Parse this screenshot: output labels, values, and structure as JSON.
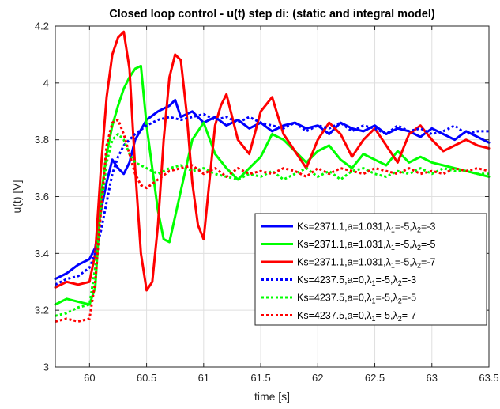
{
  "chart_data": {
    "type": "line",
    "title": "Closed loop control - u(t) step di: (static and integral model)",
    "xlabel": "time [s]",
    "ylabel": "u(t) [V]",
    "xlim": [
      59.7,
      63.5
    ],
    "ylim": [
      3.0,
      4.2
    ],
    "xticks": [
      60,
      60.5,
      61,
      61.5,
      62,
      62.5,
      63,
      63.5
    ],
    "xtick_labels": [
      "60",
      "60.5",
      "61",
      "61.5",
      "62",
      "62.5",
      "63",
      "63.5"
    ],
    "yticks": [
      3.0,
      3.2,
      3.4,
      3.6,
      3.8,
      4.0,
      4.2
    ],
    "ytick_labels": [
      "3",
      "3.2",
      "3.4",
      "3.6",
      "3.8",
      "4",
      "4.2"
    ],
    "grid": true,
    "legend_position": "lower-right",
    "series": [
      {
        "name": "Ks=2371.1,a=1.031,λ1=-5,λ2=-3",
        "legend_parts": [
          "Ks=2371.1,a=1.031,",
          "λ",
          "1",
          "=-5,",
          "λ",
          "2",
          "=-3"
        ],
        "color": "#0000ff",
        "style": "solid",
        "x": [
          59.7,
          59.8,
          59.9,
          60.0,
          60.05,
          60.1,
          60.15,
          60.2,
          60.25,
          60.3,
          60.35,
          60.4,
          60.5,
          60.6,
          60.7,
          60.75,
          60.8,
          60.9,
          61.0,
          61.1,
          61.2,
          61.3,
          61.4,
          61.5,
          61.6,
          61.7,
          61.8,
          61.9,
          62.0,
          62.1,
          62.2,
          62.3,
          62.4,
          62.5,
          62.6,
          62.7,
          62.8,
          62.9,
          63.0,
          63.1,
          63.2,
          63.3,
          63.4,
          63.5
        ],
        "y": [
          3.31,
          3.33,
          3.36,
          3.38,
          3.42,
          3.55,
          3.65,
          3.73,
          3.7,
          3.68,
          3.72,
          3.8,
          3.87,
          3.9,
          3.92,
          3.94,
          3.88,
          3.9,
          3.86,
          3.88,
          3.85,
          3.87,
          3.84,
          3.86,
          3.83,
          3.85,
          3.86,
          3.84,
          3.85,
          3.82,
          3.86,
          3.84,
          3.83,
          3.85,
          3.82,
          3.84,
          3.83,
          3.81,
          3.84,
          3.82,
          3.8,
          3.83,
          3.81,
          3.79
        ]
      },
      {
        "name": "Ks=2371.1,a=1.031,λ1=-5,λ2=-5",
        "legend_parts": [
          "Ks=2371.1,a=1.031,",
          "λ",
          "1",
          "=-5,",
          "λ",
          "2",
          "=-5"
        ],
        "color": "#00ff00",
        "style": "solid",
        "x": [
          59.7,
          59.8,
          59.9,
          60.0,
          60.05,
          60.1,
          60.15,
          60.2,
          60.25,
          60.3,
          60.35,
          60.4,
          60.45,
          60.5,
          60.55,
          60.6,
          60.65,
          60.7,
          60.8,
          60.9,
          61.0,
          61.1,
          61.2,
          61.3,
          61.4,
          61.5,
          61.6,
          61.7,
          61.8,
          61.9,
          62.0,
          62.1,
          62.2,
          62.3,
          62.4,
          62.5,
          62.6,
          62.7,
          62.8,
          62.9,
          63.0,
          63.1,
          63.2,
          63.3,
          63.4,
          63.5
        ],
        "y": [
          3.22,
          3.24,
          3.23,
          3.22,
          3.28,
          3.6,
          3.75,
          3.85,
          3.92,
          3.98,
          4.02,
          4.05,
          4.06,
          3.85,
          3.7,
          3.55,
          3.45,
          3.44,
          3.62,
          3.8,
          3.86,
          3.75,
          3.7,
          3.66,
          3.7,
          3.74,
          3.82,
          3.8,
          3.76,
          3.72,
          3.76,
          3.78,
          3.73,
          3.7,
          3.75,
          3.73,
          3.71,
          3.76,
          3.72,
          3.74,
          3.72,
          3.71,
          3.7,
          3.69,
          3.68,
          3.67
        ]
      },
      {
        "name": "Ks=2371.1,a=1.031,λ1=-5,λ2=-7",
        "legend_parts": [
          "Ks=2371.1,a=1.031,",
          "λ",
          "1",
          "=-5,",
          "λ",
          "2",
          "=-7"
        ],
        "color": "#ff0000",
        "style": "solid",
        "x": [
          59.7,
          59.8,
          59.9,
          60.0,
          60.05,
          60.1,
          60.15,
          60.2,
          60.25,
          60.3,
          60.35,
          60.4,
          60.45,
          60.5,
          60.55,
          60.6,
          60.65,
          60.7,
          60.75,
          60.8,
          60.85,
          60.9,
          60.95,
          61.0,
          61.05,
          61.1,
          61.15,
          61.2,
          61.3,
          61.4,
          61.5,
          61.6,
          61.7,
          61.8,
          61.9,
          62.0,
          62.1,
          62.2,
          62.3,
          62.4,
          62.5,
          62.6,
          62.7,
          62.8,
          62.9,
          63.0,
          63.1,
          63.2,
          63.3,
          63.4,
          63.5
        ],
        "y": [
          3.28,
          3.3,
          3.29,
          3.3,
          3.4,
          3.7,
          3.95,
          4.1,
          4.16,
          4.18,
          4.05,
          3.7,
          3.4,
          3.27,
          3.3,
          3.5,
          3.8,
          4.02,
          4.1,
          4.08,
          3.9,
          3.65,
          3.5,
          3.45,
          3.65,
          3.85,
          3.92,
          3.96,
          3.8,
          3.75,
          3.9,
          3.95,
          3.82,
          3.76,
          3.7,
          3.8,
          3.86,
          3.82,
          3.74,
          3.8,
          3.84,
          3.78,
          3.72,
          3.82,
          3.85,
          3.8,
          3.76,
          3.78,
          3.8,
          3.78,
          3.77
        ]
      },
      {
        "name": "Ks=4237.5,a=0,λ1=-5,λ2=-3",
        "legend_parts": [
          "Ks=4237.5,a=0,",
          "λ",
          "1",
          "=-5,",
          "λ",
          "2",
          "=-3"
        ],
        "color": "#0000ff",
        "style": "dotted",
        "x": [
          59.7,
          59.8,
          59.9,
          60.0,
          60.05,
          60.1,
          60.15,
          60.2,
          60.25,
          60.3,
          60.4,
          60.5,
          60.6,
          60.7,
          60.8,
          60.9,
          61.0,
          61.1,
          61.2,
          61.3,
          61.4,
          61.5,
          61.6,
          61.7,
          61.8,
          61.9,
          62.0,
          62.1,
          62.2,
          62.3,
          62.4,
          62.5,
          62.6,
          62.7,
          62.8,
          62.9,
          63.0,
          63.1,
          63.2,
          63.3,
          63.4,
          63.5
        ],
        "y": [
          3.29,
          3.31,
          3.32,
          3.35,
          3.4,
          3.48,
          3.58,
          3.68,
          3.74,
          3.78,
          3.82,
          3.85,
          3.87,
          3.88,
          3.87,
          3.88,
          3.89,
          3.87,
          3.88,
          3.86,
          3.88,
          3.86,
          3.85,
          3.84,
          3.86,
          3.83,
          3.85,
          3.84,
          3.86,
          3.83,
          3.85,
          3.84,
          3.82,
          3.85,
          3.83,
          3.84,
          3.82,
          3.83,
          3.85,
          3.82,
          3.83,
          3.83
        ]
      },
      {
        "name": "Ks=4237.5,a=0,λ1=-5,λ2=-5",
        "legend_parts": [
          "Ks=4237.5,a=0,",
          "λ",
          "1",
          "=-5,",
          "λ",
          "2",
          "=-5"
        ],
        "color": "#00ff00",
        "style": "dotted",
        "x": [
          59.7,
          59.8,
          59.9,
          60.0,
          60.05,
          60.1,
          60.15,
          60.2,
          60.25,
          60.3,
          60.35,
          60.4,
          60.5,
          60.6,
          60.7,
          60.8,
          60.9,
          61.0,
          61.1,
          61.2,
          61.3,
          61.4,
          61.5,
          61.6,
          61.7,
          61.8,
          61.9,
          62.0,
          62.1,
          62.2,
          62.3,
          62.4,
          62.5,
          62.6,
          62.7,
          62.8,
          62.9,
          63.0,
          63.1,
          63.2,
          63.3,
          63.4,
          63.5
        ],
        "y": [
          3.18,
          3.19,
          3.21,
          3.22,
          3.35,
          3.55,
          3.72,
          3.8,
          3.82,
          3.8,
          3.75,
          3.72,
          3.7,
          3.68,
          3.7,
          3.71,
          3.69,
          3.7,
          3.68,
          3.67,
          3.66,
          3.68,
          3.67,
          3.69,
          3.66,
          3.68,
          3.7,
          3.67,
          3.69,
          3.66,
          3.69,
          3.7,
          3.68,
          3.67,
          3.69,
          3.68,
          3.7,
          3.68,
          3.7,
          3.69,
          3.69,
          3.68,
          3.68
        ]
      },
      {
        "name": "Ks=4237.5,a=0,λ1=-5,λ2=-7",
        "legend_parts": [
          "Ks=4237.5,a=0,",
          "λ",
          "1",
          "=-5,",
          "λ",
          "2",
          "=-7"
        ],
        "color": "#ff0000",
        "style": "dotted",
        "x": [
          59.7,
          59.8,
          59.9,
          60.0,
          60.05,
          60.1,
          60.15,
          60.2,
          60.25,
          60.3,
          60.35,
          60.4,
          60.45,
          60.5,
          60.6,
          60.7,
          60.8,
          60.9,
          61.0,
          61.1,
          61.2,
          61.3,
          61.4,
          61.5,
          61.6,
          61.7,
          61.8,
          61.9,
          62.0,
          62.1,
          62.2,
          62.3,
          62.4,
          62.5,
          62.6,
          62.7,
          62.8,
          62.9,
          63.0,
          63.1,
          63.2,
          63.3,
          63.4,
          63.5
        ],
        "y": [
          3.16,
          3.17,
          3.16,
          3.17,
          3.3,
          3.55,
          3.78,
          3.86,
          3.87,
          3.82,
          3.75,
          3.68,
          3.64,
          3.63,
          3.66,
          3.69,
          3.7,
          3.71,
          3.68,
          3.7,
          3.67,
          3.7,
          3.68,
          3.69,
          3.68,
          3.7,
          3.69,
          3.67,
          3.7,
          3.68,
          3.7,
          3.69,
          3.68,
          3.7,
          3.69,
          3.68,
          3.7,
          3.68,
          3.69,
          3.68,
          3.7,
          3.69,
          3.7,
          3.69
        ]
      }
    ]
  }
}
